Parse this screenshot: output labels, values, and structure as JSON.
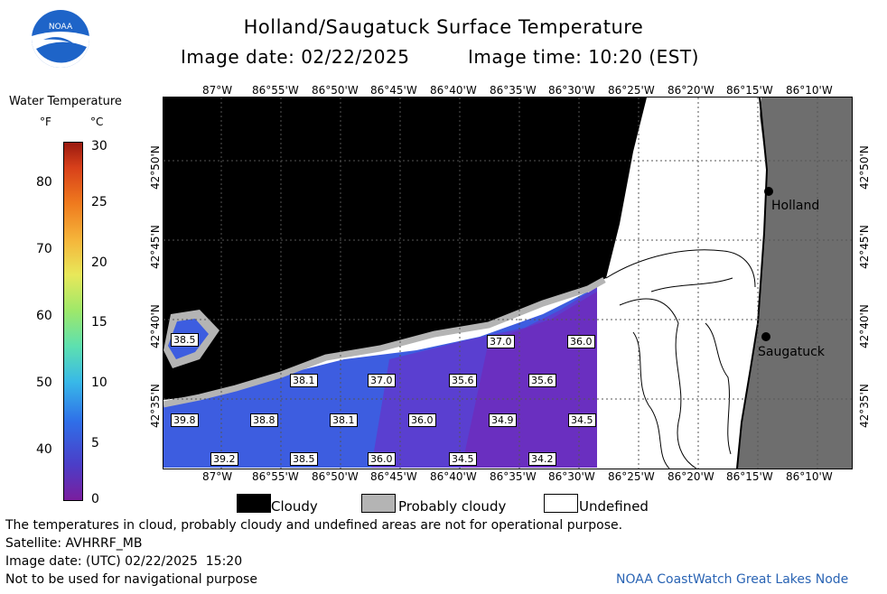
{
  "header": {
    "logo_text": "NOAA",
    "title": "Holland/Saugatuck Surface Temperature",
    "image_date": "Image date: 02/22/2025",
    "image_time": "Image time: 10:20 (EST)"
  },
  "colorbar": {
    "title": "Water Temperature",
    "unit_f": "°F",
    "unit_c": "°C",
    "f_ticks": [
      "80",
      "70",
      "60",
      "50",
      "40"
    ],
    "c_ticks": [
      "30",
      "25",
      "20",
      "15",
      "10",
      "5",
      "0"
    ]
  },
  "map": {
    "lon_labels": [
      "87°W",
      "86°55'W",
      "86°50'W",
      "86°45'W",
      "86°40'W",
      "86°35'W",
      "86°30'W",
      "86°25'W",
      "86°20'W",
      "86°15'W",
      "86°10'W"
    ],
    "lat_labels": [
      "42°50'N",
      "42°45'N",
      "42°40'N",
      "42°35'N"
    ],
    "cities": [
      "Holland",
      "Saugatuck"
    ],
    "temps": [
      "38.5",
      "37.0",
      "36.0",
      "38.1",
      "37.0",
      "35.6",
      "35.6",
      "39.8",
      "38.8",
      "38.1",
      "36.0",
      "34.9",
      "34.5",
      "39.2",
      "38.5",
      "36.0",
      "34.5",
      "34.2"
    ],
    "colors": {
      "cloud": "#000000",
      "prob_cloud": "#b4b4b4",
      "land": "#6e6e6e",
      "water_cold": "#6a2fc0",
      "water_warm": "#3d5de0"
    }
  },
  "legend": {
    "cloudy": "Cloudy",
    "probably_cloudy": "Probably cloudy",
    "undefined": "Undefined"
  },
  "footer": {
    "line1": "The temperatures in cloud, probably cloudy and undefined areas are not for operational purpose.",
    "line2": "Satellite: AVHRRF_MB",
    "line3": "Image date: (UTC) 02/22/2025  15:20",
    "line4": "Not to be used for navigational purpose",
    "credit": "NOAA CoastWatch Great Lakes Node"
  }
}
